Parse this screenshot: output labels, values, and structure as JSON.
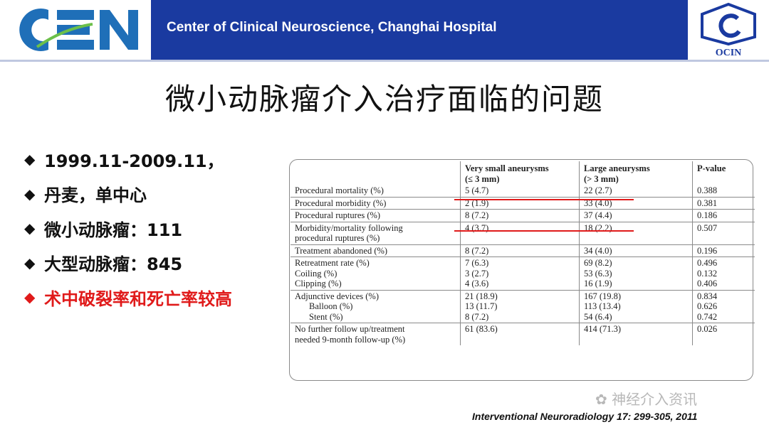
{
  "header": {
    "title": "Center of Clinical Neuroscience, Changhai Hospital",
    "logo_left_text": "CEN",
    "logo_right_text": "OCIN",
    "bg_color": "#1a3aa0"
  },
  "slide_title": "微小动脉瘤介入治疗面临的问题",
  "bullets": [
    {
      "text": "1999.11-2009.11，",
      "highlight": false
    },
    {
      "text": "丹麦，单中心",
      "highlight": false
    },
    {
      "text": "微小动脉瘤：111",
      "highlight": false
    },
    {
      "text": "大型动脉瘤：845",
      "highlight": false
    },
    {
      "text": "术中破裂率和死亡率较高",
      "highlight": true
    }
  ],
  "bullet_glyph": "◆",
  "table": {
    "headers": [
      "",
      "Very small aneurysms\n(≤ 3 mm)",
      "Large aneurysms\n(> 3 mm)",
      "P-value"
    ],
    "rows": [
      {
        "label": [
          "Procedural mortality (%)"
        ],
        "a": [
          "5 (4.7)"
        ],
        "b": [
          "22 (2.7)"
        ],
        "p": [
          "0.388"
        ]
      },
      {
        "label": [
          "Procedural morbidity (%)"
        ],
        "a": [
          "2 (1.9)"
        ],
        "b": [
          "33 (4.0)"
        ],
        "p": [
          "0.381"
        ]
      },
      {
        "label": [
          "Procedural ruptures (%)"
        ],
        "a": [
          "8 (7.2)"
        ],
        "b": [
          "37 (4.4)"
        ],
        "p": [
          "0.186"
        ]
      },
      {
        "label": [
          "Morbidity/mortality following",
          "procedural ruptures (%)"
        ],
        "a": [
          "4 (3.7)"
        ],
        "b": [
          "18 (2.2)"
        ],
        "p": [
          "0.507"
        ]
      },
      {
        "label": [
          "Treatment abandoned (%)"
        ],
        "a": [
          "8 (7.2)"
        ],
        "b": [
          "34 (4.0)"
        ],
        "p": [
          "0.196"
        ]
      },
      {
        "label": [
          "Retreatment rate (%)",
          "Coiling (%)",
          "Clipping (%)"
        ],
        "a": [
          "7 (6.3)",
          "3 (2.7)",
          "4 (3.6)"
        ],
        "b": [
          "69 (8.2)",
          "53 (6.3)",
          "16 (1.9)"
        ],
        "p": [
          "0.496",
          "0.132",
          "0.406"
        ]
      },
      {
        "label": [
          "Adjunctive devices (%)",
          "Balloon (%)",
          "Stent (%)"
        ],
        "a": [
          "21 (18.9)",
          "13 (11.7)",
          "8 (7.2)"
        ],
        "b": [
          "167 (19.8)",
          "113 (13.4)",
          "54 (6.4)"
        ],
        "p": [
          "0.834",
          "0.626",
          "0.742"
        ]
      },
      {
        "label": [
          "No further follow up/treatment",
          "needed 9-month follow-up (%)"
        ],
        "a": [
          "61 (83.6)"
        ],
        "b": [
          "414 (71.3)"
        ],
        "p": [
          "0.026"
        ]
      }
    ],
    "indented_label_lines": {
      "6": [
        1,
        2
      ]
    }
  },
  "citation": "Interventional Neuroradiology 17: 299-305, 2011",
  "watermark": "神经介入资讯",
  "accent_red": "#e01a1a"
}
